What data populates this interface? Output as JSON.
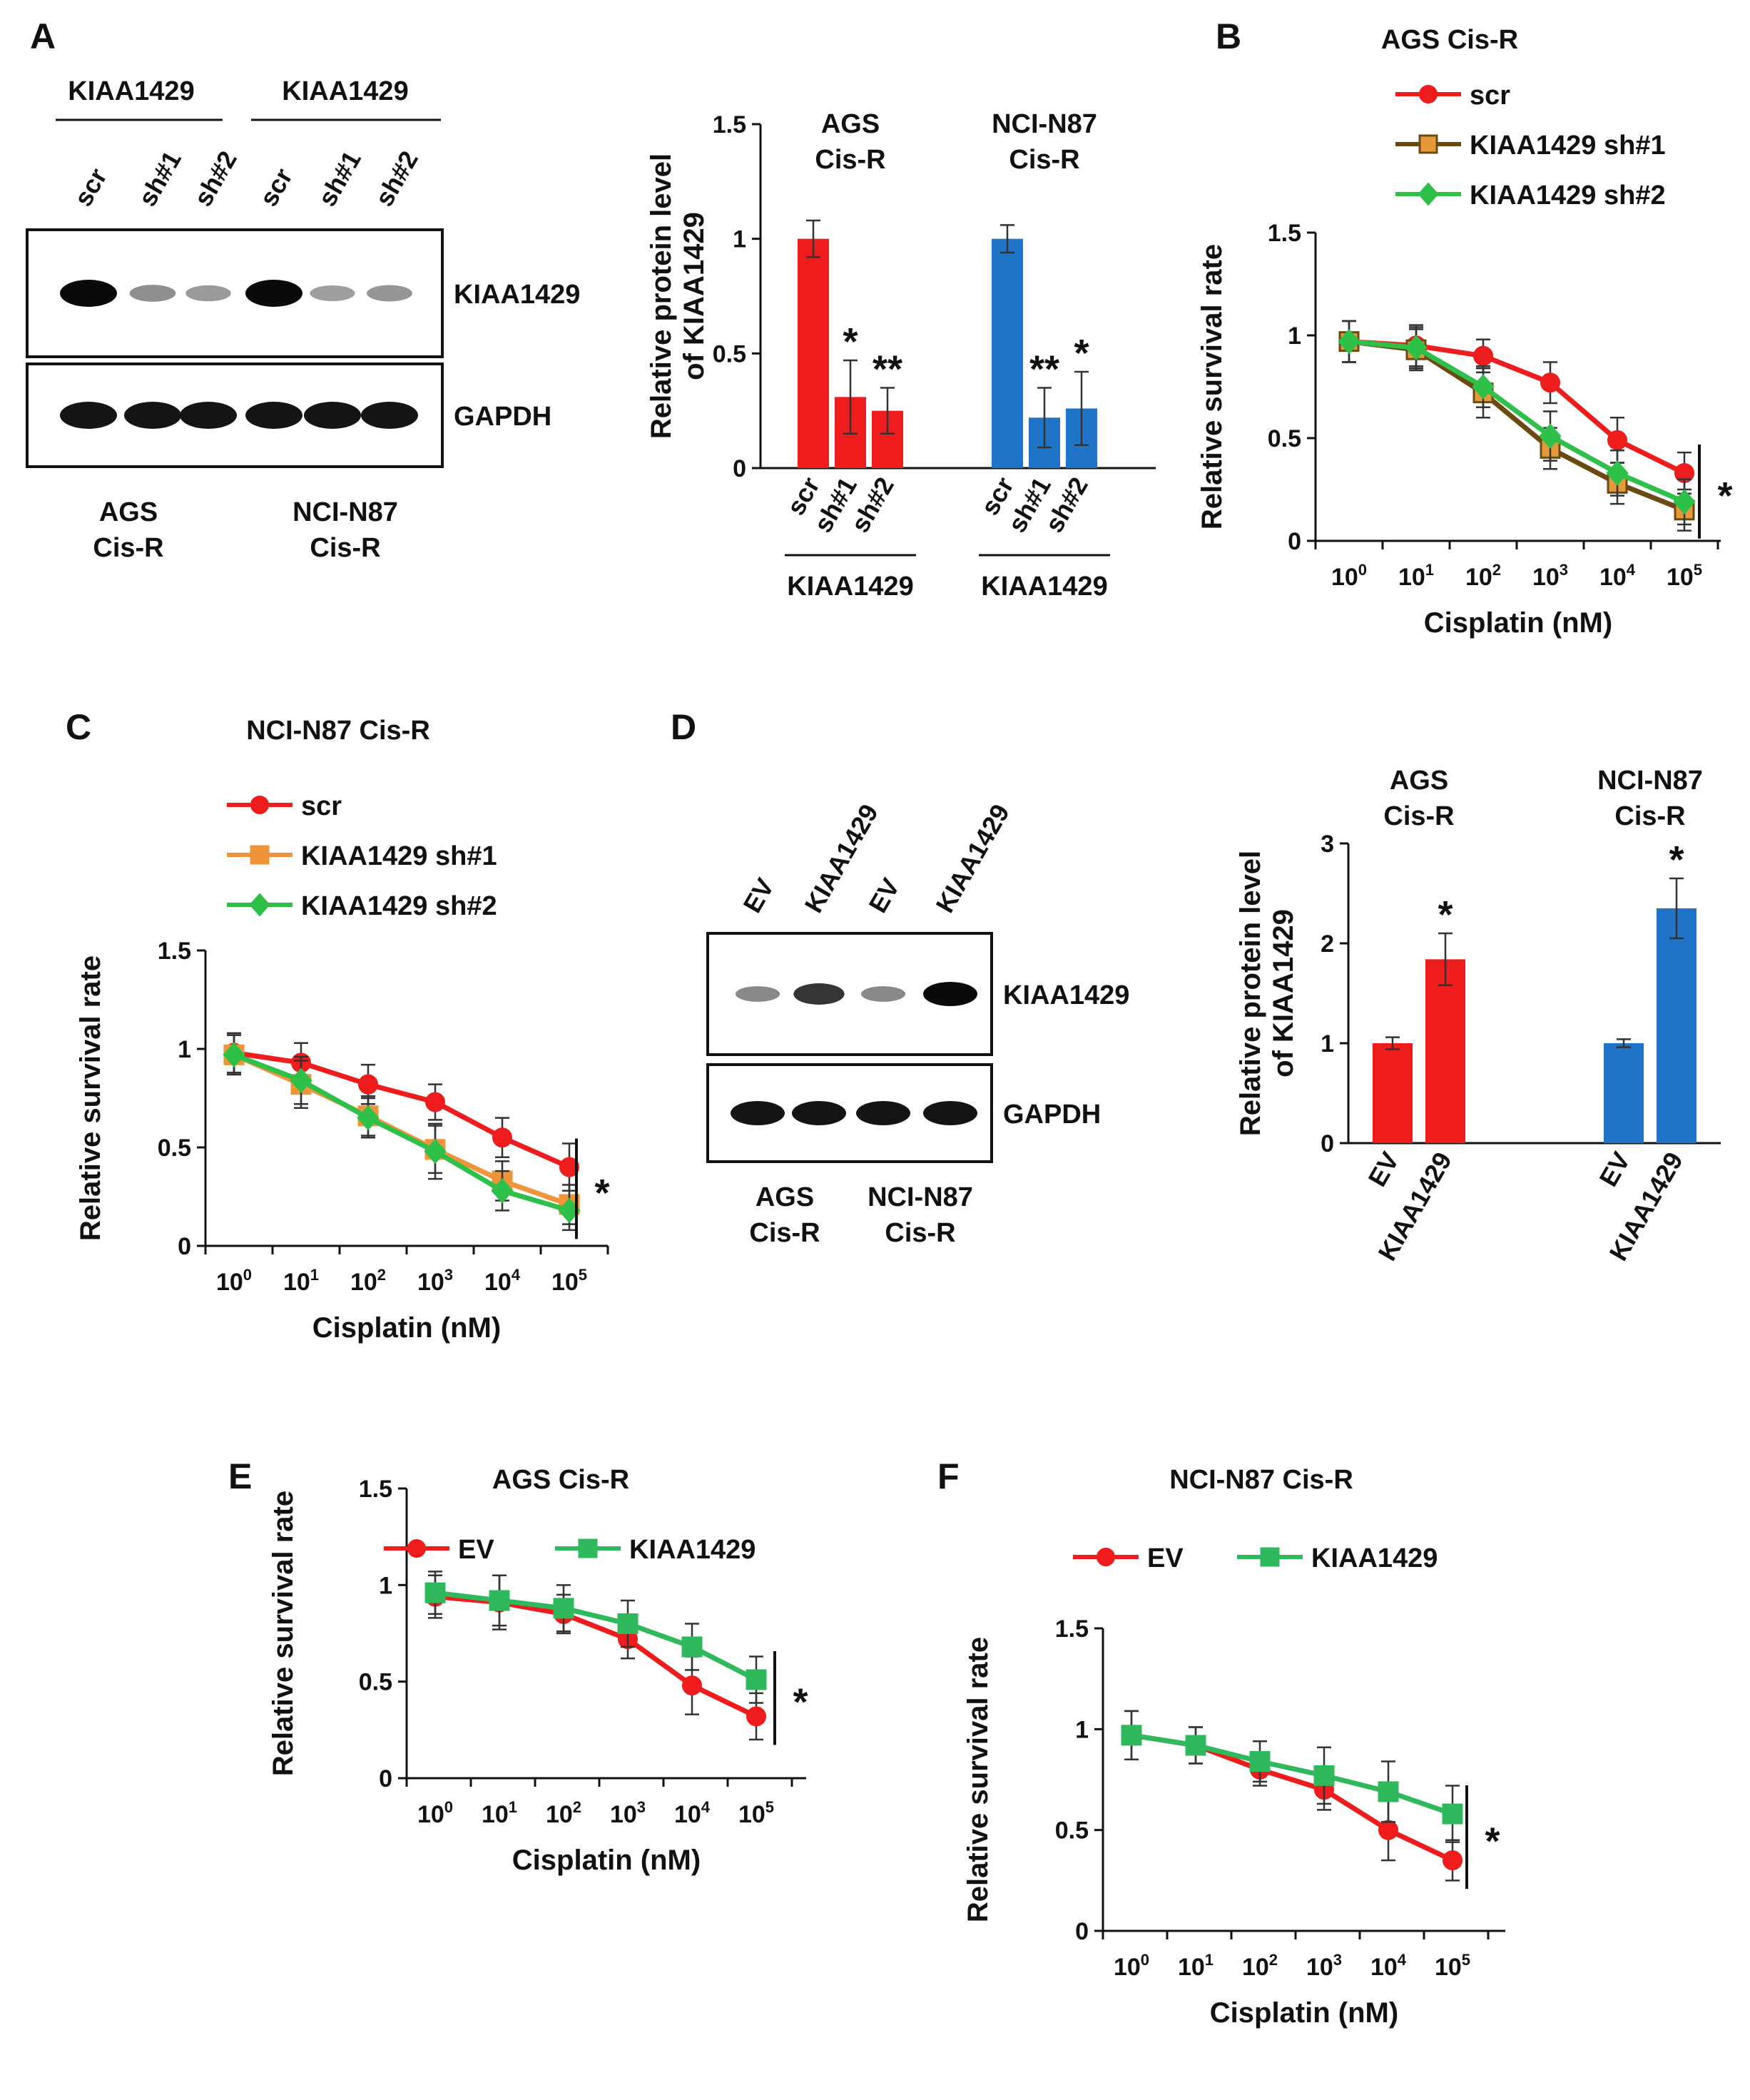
{
  "panels": {
    "A": {
      "letter": "A",
      "blot": {
        "group_header_1": "KIAA1429",
        "group_header_2": "KIAA1429",
        "lanes": [
          "scr",
          "sh#1",
          "sh#2",
          "scr",
          "sh#1",
          "sh#2"
        ],
        "band_intensity": [
          1.0,
          0.32,
          0.26,
          1.0,
          0.24,
          0.28
        ],
        "band_labels": [
          "KIAA1429",
          "GAPDH"
        ],
        "cell_line_1": [
          "AGS",
          "Cis-R"
        ],
        "cell_line_2": [
          "NCI-N87",
          "Cis-R"
        ]
      },
      "chart_data": {
        "type": "bar",
        "ylabel": [
          "Relative protein level",
          "of KIAA1429"
        ],
        "ylim": [
          0,
          1.5
        ],
        "yticks": [
          "0",
          "0.5",
          "1",
          "1.5"
        ],
        "color_1": "#ee1c1c",
        "color_2": "#1f74c8",
        "groups": [
          {
            "title": [
              "AGS",
              "Cis-R"
            ],
            "categories": [
              "scr",
              "sh#1",
              "sh#2"
            ],
            "values": [
              1.0,
              0.31,
              0.25
            ],
            "errors": [
              0.08,
              0.16,
              0.1
            ],
            "stars": [
              "",
              "*",
              "**"
            ],
            "xgroup": "KIAA1429"
          },
          {
            "title": [
              "NCI-N87",
              "Cis-R"
            ],
            "categories": [
              "scr",
              "sh#1",
              "sh#2"
            ],
            "values": [
              1.0,
              0.22,
              0.26
            ],
            "errors": [
              0.06,
              0.13,
              0.16
            ],
            "stars": [
              "",
              "**",
              "*"
            ],
            "xgroup": "KIAA1429"
          }
        ]
      }
    },
    "B": {
      "letter": "B",
      "chart_data": {
        "type": "line",
        "title": "AGS Cis-R",
        "xlabel": "Cisplatin (nM)",
        "ylabel": "Relative survival rate",
        "ylim": [
          0,
          1.5
        ],
        "yticks": [
          "0",
          "0.5",
          "1",
          "1.5"
        ],
        "xbase": "10",
        "xexp": [
          "0",
          "1",
          "2",
          "3",
          "4",
          "5"
        ],
        "x": [
          1,
          10,
          100,
          1000,
          10000,
          100000
        ],
        "sig": "*",
        "series": [
          {
            "name": "scr",
            "color": "#ee1c1c",
            "marker": "circle",
            "values": [
              0.97,
              0.95,
              0.9,
              0.77,
              0.49,
              0.33
            ],
            "errors": [
              0.1,
              0.1,
              0.08,
              0.1,
              0.11,
              0.1
            ]
          },
          {
            "name": "KIAA1429 sh#1",
            "color": "#6b4a12",
            "fill": "#e49a3a",
            "marker": "square",
            "values": [
              0.97,
              0.93,
              0.72,
              0.45,
              0.28,
              0.15
            ],
            "errors": [
              0.1,
              0.1,
              0.12,
              0.1,
              0.1,
              0.1
            ]
          },
          {
            "name": "KIAA1429 sh#2",
            "color": "#2fc04a",
            "marker": "diamond",
            "values": [
              0.97,
              0.94,
              0.75,
              0.51,
              0.33,
              0.19
            ],
            "errors": [
              0.1,
              0.1,
              0.1,
              0.12,
              0.11,
              0.11
            ]
          }
        ]
      }
    },
    "C": {
      "letter": "C",
      "chart_data": {
        "type": "line",
        "title": "NCI-N87 Cis-R",
        "xlabel": "Cisplatin (nM)",
        "ylabel": "Relative survival rate",
        "ylim": [
          0,
          1.5
        ],
        "yticks": [
          "0",
          "0.5",
          "1",
          "1.5"
        ],
        "xbase": "10",
        "xexp": [
          "0",
          "1",
          "2",
          "3",
          "4",
          "5"
        ],
        "x": [
          1,
          10,
          100,
          1000,
          10000,
          100000
        ],
        "sig": "*",
        "series": [
          {
            "name": "scr",
            "color": "#ee1c1c",
            "marker": "circle",
            "values": [
              0.98,
              0.93,
              0.82,
              0.73,
              0.55,
              0.4
            ],
            "errors": [
              0.1,
              0.1,
              0.1,
              0.09,
              0.1,
              0.12
            ]
          },
          {
            "name": "KIAA1429 sh#1",
            "color": "#f0943a",
            "marker": "square",
            "values": [
              0.97,
              0.82,
              0.66,
              0.49,
              0.33,
              0.21
            ],
            "errors": [
              0.1,
              0.12,
              0.1,
              0.12,
              0.1,
              0.1
            ]
          },
          {
            "name": "KIAA1429 sh#2",
            "color": "#2fc04a",
            "marker": "diamond",
            "values": [
              0.97,
              0.84,
              0.65,
              0.48,
              0.28,
              0.18
            ],
            "errors": [
              0.1,
              0.12,
              0.1,
              0.14,
              0.1,
              0.1
            ]
          }
        ]
      }
    },
    "D": {
      "letter": "D",
      "blot": {
        "lanes": [
          "EV",
          "KIAA1429",
          "EV",
          "KIAA1429"
        ],
        "band_intensity": [
          0.35,
          0.78,
          0.35,
          1.0
        ],
        "band_labels": [
          "KIAA1429",
          "GAPDH"
        ],
        "cell_line_1": [
          "AGS",
          "Cis-R"
        ],
        "cell_line_2": [
          "NCI-N87",
          "Cis-R"
        ]
      },
      "chart_data": {
        "type": "bar",
        "ylabel": [
          "Relative protein level",
          "of KIAA1429"
        ],
        "ylim": [
          0,
          3
        ],
        "yticks": [
          "0",
          "1",
          "2",
          "3"
        ],
        "color_1": "#ee1c1c",
        "color_2": "#1f74c8",
        "groups": [
          {
            "title": [
              "AGS",
              "Cis-R"
            ],
            "categories": [
              "EV",
              "KIAA1429"
            ],
            "values": [
              1.0,
              1.84
            ],
            "errors": [
              0.06,
              0.26
            ],
            "stars": [
              "",
              "*"
            ]
          },
          {
            "title": [
              "NCI-N87",
              "Cis-R"
            ],
            "categories": [
              "EV",
              "KIAA1429"
            ],
            "values": [
              1.0,
              2.35
            ],
            "errors": [
              0.04,
              0.3
            ],
            "stars": [
              "",
              "*"
            ]
          }
        ]
      }
    },
    "E": {
      "letter": "E",
      "chart_data": {
        "type": "line",
        "title": "AGS Cis-R",
        "xlabel": "Cisplatin (nM)",
        "ylabel": "Relative survival rate",
        "ylim": [
          0,
          1.5
        ],
        "yticks": [
          "0",
          "0.5",
          "1",
          "1.5"
        ],
        "xbase": "10",
        "xexp": [
          "0",
          "1",
          "2",
          "3",
          "4",
          "5"
        ],
        "x": [
          1,
          10,
          100,
          1000,
          10000,
          100000
        ],
        "sig": "*",
        "series": [
          {
            "name": "EV",
            "color": "#ee1c1c",
            "marker": "circle",
            "values": [
              0.94,
              0.91,
              0.85,
              0.72,
              0.48,
              0.32
            ],
            "errors": [
              0.11,
              0.14,
              0.1,
              0.1,
              0.15,
              0.12
            ]
          },
          {
            "name": "KIAA1429",
            "color": "#2fb85c",
            "marker": "square",
            "values": [
              0.96,
              0.92,
              0.88,
              0.8,
              0.68,
              0.51
            ],
            "errors": [
              0.11,
              0.13,
              0.12,
              0.12,
              0.12,
              0.12
            ]
          }
        ]
      }
    },
    "F": {
      "letter": "F",
      "chart_data": {
        "type": "line",
        "title": "NCI-N87 Cis-R",
        "xlabel": "Cisplatin (nM)",
        "ylabel": "Relative survival rate",
        "ylim": [
          0,
          1.5
        ],
        "yticks": [
          "0",
          "0.5",
          "1",
          "1.5"
        ],
        "xbase": "10",
        "xexp": [
          "0",
          "1",
          "2",
          "3",
          "4",
          "5"
        ],
        "x": [
          1,
          10,
          100,
          1000,
          10000,
          100000
        ],
        "sig": "*",
        "series": [
          {
            "name": "EV",
            "color": "#ee1c1c",
            "marker": "circle",
            "values": [
              0.97,
              0.92,
              0.8,
              0.7,
              0.5,
              0.35
            ],
            "errors": [
              0.12,
              0.09,
              0.08,
              0.1,
              0.15,
              0.1
            ]
          },
          {
            "name": "KIAA1429",
            "color": "#2fb85c",
            "marker": "square",
            "values": [
              0.97,
              0.92,
              0.84,
              0.77,
              0.69,
              0.58
            ],
            "errors": [
              0.12,
              0.09,
              0.1,
              0.14,
              0.15,
              0.14
            ]
          }
        ]
      }
    }
  }
}
